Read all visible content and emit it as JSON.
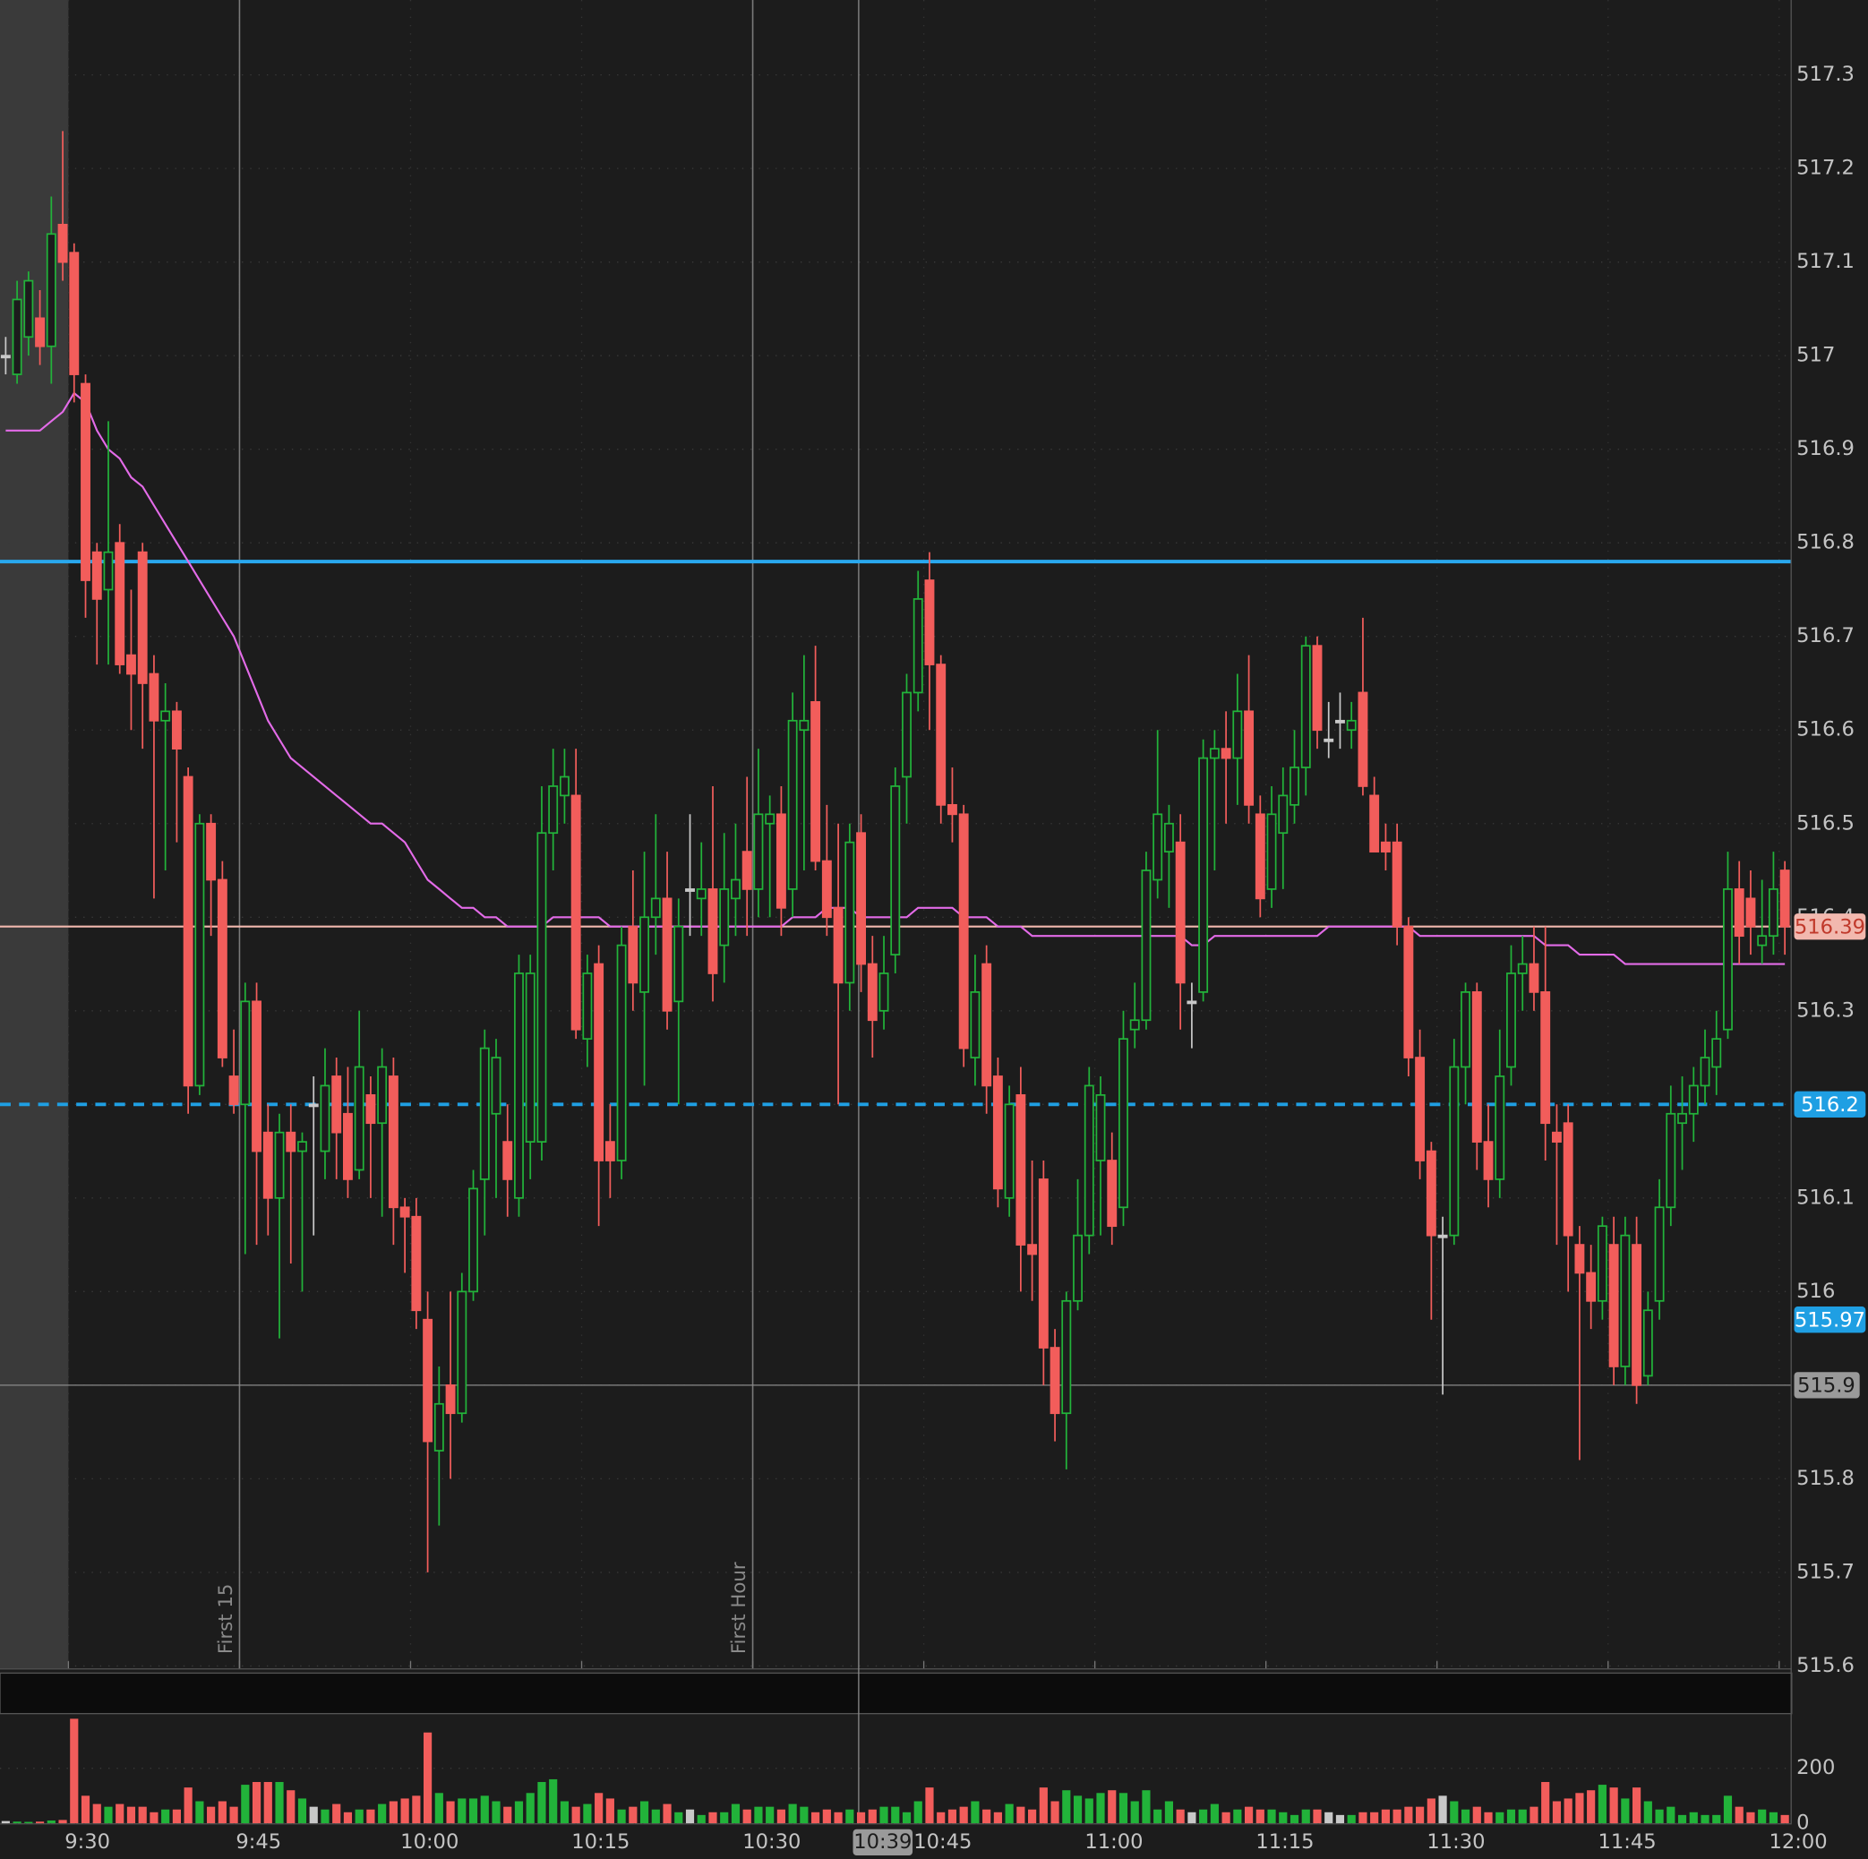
{
  "chart_data": {
    "type": "candlestick",
    "categories": [
      null,
      null,
      null,
      null,
      null,
      null,
      "9:30",
      null,
      null,
      null,
      null,
      null,
      null,
      null,
      null,
      null,
      null,
      null,
      null,
      null,
      null,
      "9:45",
      null,
      null,
      null,
      null,
      null,
      null,
      null,
      null,
      null,
      null,
      null,
      null,
      null,
      null,
      "10:00",
      null,
      null,
      null,
      null,
      null,
      null,
      null,
      null,
      null,
      null,
      null,
      null,
      null,
      null,
      "10:15",
      null,
      null,
      null,
      null,
      null,
      null,
      null,
      null,
      null,
      null,
      null,
      null,
      null,
      null,
      "10:30",
      null,
      null,
      null,
      null,
      null,
      null,
      null,
      null,
      "10:39",
      null,
      null,
      null,
      null,
      null,
      "10:45",
      null,
      null,
      null,
      null,
      null,
      null,
      null,
      null,
      null,
      null,
      null,
      null,
      null,
      null,
      "11:00",
      null,
      null,
      null,
      null,
      null,
      null,
      null,
      null,
      null,
      null,
      null,
      null,
      null,
      null,
      "11:15",
      null,
      null,
      null,
      null,
      null,
      null,
      null,
      null,
      null,
      null,
      null,
      null,
      null,
      null,
      "11:30",
      null,
      null,
      null,
      null,
      null,
      null,
      null,
      null,
      null,
      null,
      null,
      null,
      null,
      null,
      "11:45",
      null,
      null,
      null,
      null,
      null,
      null,
      null,
      null,
      null,
      null,
      null,
      null,
      null,
      null,
      "12:00"
    ],
    "open": [
      517.0,
      516.98,
      517.02,
      517.04,
      517.01,
      517.14,
      517.11,
      516.97,
      516.79,
      516.75,
      516.8,
      516.68,
      516.79,
      516.66,
      516.61,
      516.62,
      516.55,
      516.22,
      516.5,
      516.44,
      516.23,
      516.2,
      516.31,
      516.17,
      516.1,
      516.17,
      516.15,
      516.2,
      516.15,
      516.23,
      516.19,
      516.13,
      516.21,
      516.18,
      516.23,
      516.09,
      516.08,
      515.97,
      515.83,
      515.9,
      515.87,
      516.0,
      516.12,
      516.19,
      516.16,
      516.1,
      516.16,
      516.16,
      516.49,
      516.53,
      516.53,
      516.27,
      516.35,
      516.16,
      516.14,
      516.39,
      516.32,
      516.4,
      516.42,
      516.31,
      516.43,
      516.42,
      516.43,
      516.37,
      516.42,
      516.47,
      516.43,
      516.5,
      516.51,
      516.43,
      516.6,
      516.63,
      516.46,
      516.41,
      516.33,
      516.49,
      516.35,
      516.3,
      516.36,
      516.55,
      516.64,
      516.76,
      516.67,
      516.52,
      516.51,
      516.25,
      516.35,
      516.23,
      516.1,
      516.21,
      516.05,
      516.12,
      515.94,
      515.87,
      515.99,
      516.06,
      516.14,
      516.14,
      516.09,
      516.28,
      516.29,
      516.44,
      516.47,
      516.48,
      516.31,
      516.32,
      516.57,
      516.58,
      516.57,
      516.62,
      516.51,
      516.43,
      516.49,
      516.52,
      516.56,
      516.69,
      516.59,
      516.61,
      516.6,
      516.64,
      516.53,
      516.48,
      516.48,
      516.39,
      516.25,
      516.15,
      516.06,
      516.06,
      516.24,
      516.32,
      516.16,
      516.12,
      516.24,
      516.34,
      516.35,
      516.32,
      516.17,
      516.18,
      516.05,
      516.02,
      515.99,
      516.05,
      515.92,
      516.05,
      515.91,
      515.99,
      516.09,
      516.18,
      516.19,
      516.22,
      516.24,
      516.28,
      516.43,
      516.42,
      516.37,
      516.38,
      516.45
    ],
    "high": [
      517.02,
      517.08,
      517.09,
      517.07,
      517.17,
      517.24,
      517.12,
      516.98,
      516.8,
      516.93,
      516.82,
      516.75,
      516.8,
      516.68,
      516.65,
      516.63,
      516.56,
      516.51,
      516.51,
      516.46,
      516.28,
      516.33,
      516.33,
      516.2,
      516.19,
      516.2,
      516.17,
      516.23,
      516.26,
      516.25,
      516.24,
      516.3,
      516.23,
      516.26,
      516.25,
      516.1,
      516.1,
      516.0,
      515.92,
      516.0,
      516.02,
      516.13,
      516.28,
      516.27,
      516.2,
      516.36,
      516.36,
      516.54,
      516.58,
      516.58,
      516.58,
      516.36,
      516.37,
      516.2,
      516.39,
      516.45,
      516.47,
      516.51,
      516.47,
      516.42,
      516.51,
      516.48,
      516.54,
      516.49,
      516.5,
      516.55,
      516.58,
      516.53,
      516.54,
      516.64,
      516.68,
      516.69,
      516.52,
      516.5,
      516.5,
      516.51,
      516.38,
      516.38,
      516.56,
      516.66,
      516.77,
      516.79,
      516.68,
      516.56,
      516.52,
      516.36,
      516.37,
      516.25,
      516.22,
      516.24,
      516.14,
      516.14,
      515.96,
      516.0,
      516.12,
      516.24,
      516.23,
      516.17,
      516.3,
      516.33,
      516.47,
      516.6,
      516.52,
      516.51,
      516.33,
      516.59,
      516.6,
      516.62,
      516.66,
      516.68,
      516.53,
      516.54,
      516.56,
      516.6,
      516.7,
      516.7,
      516.63,
      516.64,
      516.63,
      516.72,
      516.55,
      516.5,
      516.5,
      516.4,
      516.28,
      516.16,
      516.08,
      516.27,
      516.33,
      516.33,
      516.2,
      516.28,
      516.37,
      516.38,
      516.39,
      516.39,
      516.2,
      516.2,
      516.07,
      516.05,
      516.08,
      516.08,
      516.08,
      516.08,
      516.0,
      516.12,
      516.22,
      516.23,
      516.24,
      516.28,
      516.3,
      516.47,
      516.46,
      516.45,
      516.44,
      516.47,
      516.46
    ],
    "low": [
      516.98,
      516.97,
      517.0,
      516.99,
      516.97,
      517.08,
      516.95,
      516.72,
      516.67,
      516.67,
      516.66,
      516.6,
      516.58,
      516.42,
      516.45,
      516.48,
      516.19,
      516.21,
      516.38,
      516.24,
      516.19,
      516.04,
      516.05,
      516.06,
      515.95,
      516.03,
      516.0,
      516.06,
      516.12,
      516.12,
      516.1,
      516.12,
      516.1,
      516.08,
      516.05,
      516.02,
      515.96,
      515.7,
      515.75,
      515.8,
      515.86,
      515.99,
      516.06,
      516.1,
      516.08,
      516.08,
      516.12,
      516.14,
      516.45,
      516.5,
      516.27,
      516.24,
      516.07,
      516.1,
      516.12,
      516.3,
      516.22,
      516.36,
      516.28,
      516.2,
      516.38,
      516.38,
      516.31,
      516.33,
      516.38,
      516.38,
      516.4,
      516.4,
      516.38,
      516.4,
      516.45,
      516.45,
      516.38,
      516.2,
      516.3,
      516.32,
      516.25,
      516.28,
      516.34,
      516.5,
      516.62,
      516.6,
      516.5,
      516.48,
      516.24,
      516.22,
      516.19,
      516.09,
      516.08,
      516.0,
      515.99,
      515.9,
      515.84,
      515.81,
      515.98,
      516.04,
      516.06,
      516.05,
      516.07,
      516.26,
      516.28,
      516.42,
      516.41,
      516.28,
      516.26,
      516.31,
      516.45,
      516.5,
      516.52,
      516.5,
      516.4,
      516.41,
      516.43,
      516.5,
      516.53,
      516.58,
      516.57,
      516.58,
      516.58,
      516.53,
      516.47,
      516.45,
      516.37,
      516.23,
      516.12,
      515.97,
      515.89,
      516.05,
      516.2,
      516.13,
      516.09,
      516.1,
      516.22,
      516.3,
      516.3,
      516.14,
      516.05,
      516.0,
      515.82,
      515.96,
      515.97,
      515.9,
      515.9,
      515.88,
      515.9,
      515.97,
      516.07,
      516.13,
      516.16,
      516.2,
      516.21,
      516.27,
      516.35,
      516.36,
      516.35,
      516.36,
      516.36
    ],
    "close": [
      517.0,
      517.06,
      517.08,
      517.01,
      517.13,
      517.1,
      516.98,
      516.76,
      516.74,
      516.79,
      516.67,
      516.66,
      516.65,
      516.61,
      516.62,
      516.58,
      516.22,
      516.5,
      516.44,
      516.25,
      516.2,
      516.31,
      516.15,
      516.1,
      516.17,
      516.15,
      516.16,
      516.2,
      516.22,
      516.17,
      516.12,
      516.24,
      516.18,
      516.24,
      516.09,
      516.08,
      515.98,
      515.84,
      515.88,
      515.87,
      516.0,
      516.11,
      516.26,
      516.25,
      516.12,
      516.34,
      516.34,
      516.49,
      516.54,
      516.55,
      516.28,
      516.34,
      516.14,
      516.14,
      516.37,
      516.33,
      516.4,
      516.42,
      516.3,
      516.39,
      516.43,
      516.43,
      516.34,
      516.43,
      516.44,
      516.43,
      516.51,
      516.51,
      516.41,
      516.61,
      516.61,
      516.46,
      516.4,
      516.33,
      516.48,
      516.35,
      516.29,
      516.34,
      516.54,
      516.64,
      516.74,
      516.67,
      516.52,
      516.51,
      516.26,
      516.32,
      516.22,
      516.11,
      516.2,
      516.05,
      516.04,
      515.94,
      515.87,
      515.99,
      516.06,
      516.22,
      516.21,
      516.07,
      516.27,
      516.29,
      516.45,
      516.51,
      516.5,
      516.33,
      516.31,
      516.57,
      516.58,
      516.57,
      516.62,
      516.52,
      516.42,
      516.51,
      516.53,
      516.56,
      516.69,
      516.6,
      516.59,
      516.61,
      516.61,
      516.54,
      516.47,
      516.47,
      516.39,
      516.25,
      516.14,
      516.06,
      516.06,
      516.24,
      516.32,
      516.16,
      516.12,
      516.23,
      516.34,
      516.35,
      516.32,
      516.18,
      516.16,
      516.06,
      516.02,
      515.99,
      516.07,
      515.92,
      516.06,
      515.9,
      515.98,
      516.09,
      516.19,
      516.19,
      516.22,
      516.25,
      516.27,
      516.43,
      516.38,
      516.39,
      516.38,
      516.43,
      516.39
    ],
    "volume": [
      8,
      6,
      5,
      6,
      10,
      12,
      380,
      100,
      70,
      60,
      70,
      60,
      60,
      40,
      50,
      50,
      130,
      80,
      60,
      80,
      60,
      140,
      150,
      150,
      150,
      120,
      90,
      60,
      50,
      70,
      40,
      50,
      50,
      70,
      80,
      90,
      100,
      330,
      110,
      80,
      90,
      90,
      100,
      80,
      60,
      80,
      110,
      150,
      160,
      80,
      60,
      70,
      110,
      90,
      50,
      60,
      80,
      50,
      70,
      40,
      50,
      30,
      40,
      40,
      70,
      50,
      60,
      60,
      50,
      70,
      60,
      40,
      50,
      40,
      50,
      40,
      50,
      60,
      60,
      40,
      80,
      130,
      40,
      50,
      60,
      80,
      50,
      40,
      70,
      60,
      50,
      130,
      80,
      120,
      100,
      90,
      110,
      120,
      110,
      80,
      120,
      50,
      80,
      50,
      40,
      50,
      70,
      40,
      50,
      60,
      50,
      50,
      40,
      30,
      50,
      50,
      40,
      30,
      30,
      40,
      40,
      50,
      50,
      60,
      60,
      90,
      100,
      80,
      50,
      60,
      40,
      40,
      50,
      50,
      60,
      150,
      80,
      90,
      110,
      120,
      140,
      130,
      90,
      130,
      80,
      50,
      60,
      30,
      40,
      30,
      30,
      100,
      60,
      40,
      50,
      40,
      30
    ],
    "vwap": [
      516.92,
      516.92,
      516.92,
      516.92,
      516.93,
      516.94,
      516.96,
      516.95,
      516.92,
      516.9,
      516.89,
      516.87,
      516.86,
      516.84,
      516.82,
      516.8,
      516.78,
      516.76,
      516.74,
      516.72,
      516.7,
      516.67,
      516.64,
      516.61,
      516.59,
      516.57,
      516.56,
      516.55,
      516.54,
      516.53,
      516.52,
      516.51,
      516.5,
      516.5,
      516.49,
      516.48,
      516.46,
      516.44,
      516.43,
      516.42,
      516.41,
      516.41,
      516.4,
      516.4,
      516.39,
      516.39,
      516.39,
      516.39,
      516.4,
      516.4,
      516.4,
      516.4,
      516.4,
      516.39,
      516.39,
      516.39,
      516.39,
      516.39,
      516.39,
      516.39,
      516.39,
      516.39,
      516.39,
      516.39,
      516.39,
      516.39,
      516.39,
      516.39,
      516.39,
      516.4,
      516.4,
      516.4,
      516.41,
      516.41,
      516.41,
      516.4,
      516.4,
      516.4,
      516.4,
      516.4,
      516.41,
      516.41,
      516.41,
      516.41,
      516.4,
      516.4,
      516.4,
      516.39,
      516.39,
      516.39,
      516.38,
      516.38,
      516.38,
      516.38,
      516.38,
      516.38,
      516.38,
      516.38,
      516.38,
      516.38,
      516.38,
      516.38,
      516.38,
      516.38,
      516.37,
      516.37,
      516.38,
      516.38,
      516.38,
      516.38,
      516.38,
      516.38,
      516.38,
      516.38,
      516.38,
      516.38,
      516.39,
      516.39,
      516.39,
      516.39,
      516.39,
      516.39,
      516.39,
      516.39,
      516.38,
      516.38,
      516.38,
      516.38,
      516.38,
      516.38,
      516.38,
      516.38,
      516.38,
      516.38,
      516.38,
      516.37,
      516.37,
      516.37,
      516.36,
      516.36,
      516.36,
      516.36,
      516.35,
      516.35,
      516.35,
      516.35,
      516.35,
      516.35,
      516.35,
      516.35,
      516.35,
      516.35,
      516.35,
      516.35,
      516.35,
      516.35,
      516.35
    ],
    "up_color": "#22b33a",
    "down_color": "#f25d5b",
    "flat_color": "#c8c8c8",
    "vwap_color": "#e36be8",
    "ylim": [
      515.6,
      517.38
    ],
    "yticks": [
      515.6,
      515.7,
      515.8,
      515.9,
      516,
      516.1,
      516.2,
      516.3,
      516.4,
      516.5,
      516.6,
      516.7,
      516.8,
      516.9,
      517,
      517.1,
      517.2,
      517.3
    ],
    "volume_ylim": [
      0,
      390
    ],
    "volume_yticks": [
      0,
      200
    ],
    "grid": true,
    "levels": [
      {
        "value": 516.78,
        "color": "#29a8ee",
        "style": "solid",
        "tag": false
      },
      {
        "value": 516.2,
        "color": "#1f9fe3",
        "style": "dashed",
        "tag": true,
        "tag_text_color": "#ffffff"
      },
      {
        "value": 516.39,
        "color": "#f2b8ae",
        "style": "thin",
        "tag": true,
        "tag_text_color": "#c0392b"
      },
      {
        "value": 515.97,
        "color": "#1f9fe3",
        "style": "none",
        "tag": true,
        "tag_text_color": "#ffffff"
      }
    ],
    "markers": [
      {
        "at": "9:45",
        "label": "First 15"
      },
      {
        "at": "10:30",
        "label": "First Hour"
      }
    ],
    "crosshair": {
      "x": "10:39",
      "y": 515.9,
      "color": "#8a8a8a"
    }
  }
}
